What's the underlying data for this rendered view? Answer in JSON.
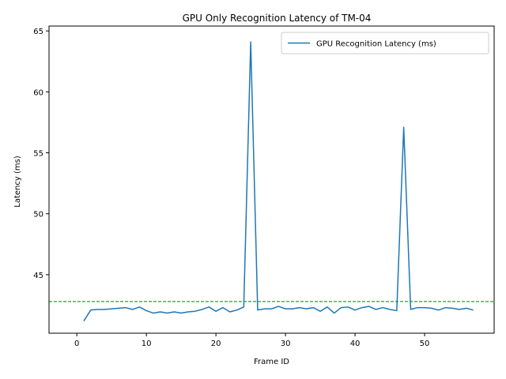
{
  "chart_data": {
    "type": "line",
    "title": "GPU Only Recognition Latency of TM-04",
    "xlabel": "Frame ID",
    "ylabel": "Latency (ms)",
    "xlim": [
      -4,
      60
    ],
    "ylim": [
      40.2,
      65.4
    ],
    "xticks": [
      0,
      10,
      20,
      30,
      40,
      50
    ],
    "yticks": [
      45,
      50,
      55,
      60,
      65
    ],
    "grid": false,
    "legend_position": "upper right",
    "series": [
      {
        "name": "GPU Recognition Latency (ms)",
        "color": "#1f77b4",
        "x": [
          1,
          2,
          3,
          4,
          5,
          6,
          7,
          8,
          9,
          10,
          11,
          12,
          13,
          14,
          15,
          16,
          17,
          18,
          19,
          20,
          21,
          22,
          23,
          24,
          25,
          26,
          27,
          28,
          29,
          30,
          31,
          32,
          33,
          34,
          35,
          36,
          37,
          38,
          39,
          40,
          41,
          42,
          43,
          44,
          45,
          46,
          47,
          48,
          49,
          50,
          51,
          52,
          53,
          54,
          55,
          56,
          57
        ],
        "values": [
          41.2,
          42.1,
          42.15,
          42.15,
          42.2,
          42.25,
          42.3,
          42.15,
          42.35,
          42.05,
          41.85,
          41.95,
          41.85,
          41.95,
          41.85,
          41.95,
          42.0,
          42.15,
          42.35,
          42.0,
          42.3,
          41.95,
          42.1,
          42.35,
          64.1,
          42.1,
          42.2,
          42.2,
          42.4,
          42.2,
          42.2,
          42.3,
          42.2,
          42.3,
          42.0,
          42.35,
          41.85,
          42.3,
          42.35,
          42.1,
          42.3,
          42.4,
          42.15,
          42.3,
          42.15,
          42.05,
          57.1,
          42.15,
          42.3,
          42.3,
          42.25,
          42.1,
          42.3,
          42.25,
          42.15,
          42.25,
          42.1
        ]
      }
    ],
    "reference_line": {
      "y": 42.8,
      "color": "#008000",
      "style": "dashed"
    }
  }
}
